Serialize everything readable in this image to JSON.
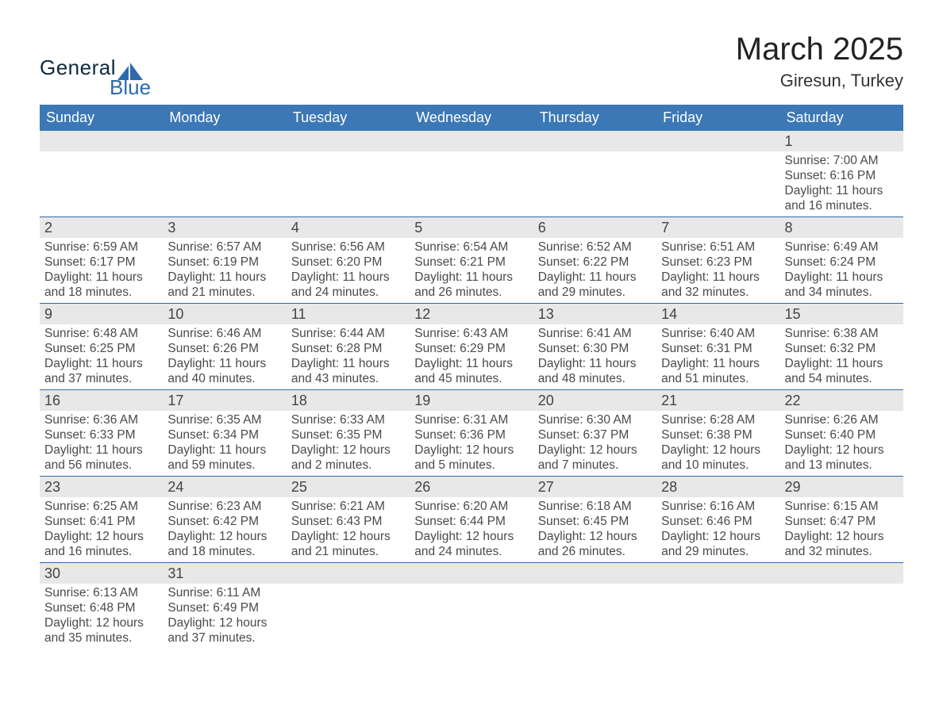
{
  "brand": {
    "top": "General",
    "bottom": "Blue"
  },
  "title": "March 2025",
  "location": "Giresun, Turkey",
  "weekdays": [
    "Sunday",
    "Monday",
    "Tuesday",
    "Wednesday",
    "Thursday",
    "Friday",
    "Saturday"
  ],
  "colors": {
    "header_blue": "#3b78b5",
    "row_sep_blue": "#2d6aad",
    "light_gray": "#e8e8e8",
    "text_dark": "#333333",
    "logo_dark": "#0d2a3f",
    "logo_blue": "#2d6aad"
  },
  "layout": {
    "columns": 7,
    "rows": 6,
    "first_weekday_index": 6
  },
  "days": [
    {
      "n": 1,
      "sunrise": "7:00 AM",
      "sunset": "6:16 PM",
      "daylight": "11 hours and 16 minutes."
    },
    {
      "n": 2,
      "sunrise": "6:59 AM",
      "sunset": "6:17 PM",
      "daylight": "11 hours and 18 minutes."
    },
    {
      "n": 3,
      "sunrise": "6:57 AM",
      "sunset": "6:19 PM",
      "daylight": "11 hours and 21 minutes."
    },
    {
      "n": 4,
      "sunrise": "6:56 AM",
      "sunset": "6:20 PM",
      "daylight": "11 hours and 24 minutes."
    },
    {
      "n": 5,
      "sunrise": "6:54 AM",
      "sunset": "6:21 PM",
      "daylight": "11 hours and 26 minutes."
    },
    {
      "n": 6,
      "sunrise": "6:52 AM",
      "sunset": "6:22 PM",
      "daylight": "11 hours and 29 minutes."
    },
    {
      "n": 7,
      "sunrise": "6:51 AM",
      "sunset": "6:23 PM",
      "daylight": "11 hours and 32 minutes."
    },
    {
      "n": 8,
      "sunrise": "6:49 AM",
      "sunset": "6:24 PM",
      "daylight": "11 hours and 34 minutes."
    },
    {
      "n": 9,
      "sunrise": "6:48 AM",
      "sunset": "6:25 PM",
      "daylight": "11 hours and 37 minutes."
    },
    {
      "n": 10,
      "sunrise": "6:46 AM",
      "sunset": "6:26 PM",
      "daylight": "11 hours and 40 minutes."
    },
    {
      "n": 11,
      "sunrise": "6:44 AM",
      "sunset": "6:28 PM",
      "daylight": "11 hours and 43 minutes."
    },
    {
      "n": 12,
      "sunrise": "6:43 AM",
      "sunset": "6:29 PM",
      "daylight": "11 hours and 45 minutes."
    },
    {
      "n": 13,
      "sunrise": "6:41 AM",
      "sunset": "6:30 PM",
      "daylight": "11 hours and 48 minutes."
    },
    {
      "n": 14,
      "sunrise": "6:40 AM",
      "sunset": "6:31 PM",
      "daylight": "11 hours and 51 minutes."
    },
    {
      "n": 15,
      "sunrise": "6:38 AM",
      "sunset": "6:32 PM",
      "daylight": "11 hours and 54 minutes."
    },
    {
      "n": 16,
      "sunrise": "6:36 AM",
      "sunset": "6:33 PM",
      "daylight": "11 hours and 56 minutes."
    },
    {
      "n": 17,
      "sunrise": "6:35 AM",
      "sunset": "6:34 PM",
      "daylight": "11 hours and 59 minutes."
    },
    {
      "n": 18,
      "sunrise": "6:33 AM",
      "sunset": "6:35 PM",
      "daylight": "12 hours and 2 minutes."
    },
    {
      "n": 19,
      "sunrise": "6:31 AM",
      "sunset": "6:36 PM",
      "daylight": "12 hours and 5 minutes."
    },
    {
      "n": 20,
      "sunrise": "6:30 AM",
      "sunset": "6:37 PM",
      "daylight": "12 hours and 7 minutes."
    },
    {
      "n": 21,
      "sunrise": "6:28 AM",
      "sunset": "6:38 PM",
      "daylight": "12 hours and 10 minutes."
    },
    {
      "n": 22,
      "sunrise": "6:26 AM",
      "sunset": "6:40 PM",
      "daylight": "12 hours and 13 minutes."
    },
    {
      "n": 23,
      "sunrise": "6:25 AM",
      "sunset": "6:41 PM",
      "daylight": "12 hours and 16 minutes."
    },
    {
      "n": 24,
      "sunrise": "6:23 AM",
      "sunset": "6:42 PM",
      "daylight": "12 hours and 18 minutes."
    },
    {
      "n": 25,
      "sunrise": "6:21 AM",
      "sunset": "6:43 PM",
      "daylight": "12 hours and 21 minutes."
    },
    {
      "n": 26,
      "sunrise": "6:20 AM",
      "sunset": "6:44 PM",
      "daylight": "12 hours and 24 minutes."
    },
    {
      "n": 27,
      "sunrise": "6:18 AM",
      "sunset": "6:45 PM",
      "daylight": "12 hours and 26 minutes."
    },
    {
      "n": 28,
      "sunrise": "6:16 AM",
      "sunset": "6:46 PM",
      "daylight": "12 hours and 29 minutes."
    },
    {
      "n": 29,
      "sunrise": "6:15 AM",
      "sunset": "6:47 PM",
      "daylight": "12 hours and 32 minutes."
    },
    {
      "n": 30,
      "sunrise": "6:13 AM",
      "sunset": "6:48 PM",
      "daylight": "12 hours and 35 minutes."
    },
    {
      "n": 31,
      "sunrise": "6:11 AM",
      "sunset": "6:49 PM",
      "daylight": "12 hours and 37 minutes."
    }
  ],
  "labels": {
    "sunrise": "Sunrise",
    "sunset": "Sunset",
    "daylight": "Daylight"
  }
}
